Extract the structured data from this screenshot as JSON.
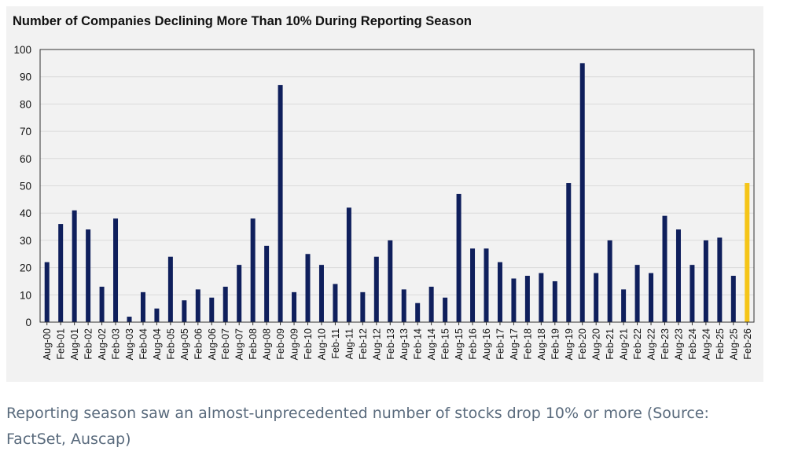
{
  "chart_data": {
    "type": "bar",
    "title": "Number of Companies Declining More Than 10% During Reporting Season",
    "xlabel": "",
    "ylabel": "",
    "ylim": [
      0,
      100
    ],
    "yticks": [
      0,
      10,
      20,
      30,
      40,
      50,
      60,
      70,
      80,
      90,
      100
    ],
    "grid": true,
    "categories": [
      "Aug-00",
      "Feb-01",
      "Aug-01",
      "Feb-02",
      "Aug-02",
      "Feb-03",
      "Aug-03",
      "Feb-04",
      "Aug-04",
      "Feb-05",
      "Aug-05",
      "Feb-06",
      "Aug-06",
      "Feb-07",
      "Aug-07",
      "Feb-08",
      "Aug-08",
      "Feb-09",
      "Aug-09",
      "Feb-10",
      "Aug-10",
      "Feb-11",
      "Aug-11",
      "Feb-12",
      "Aug-12",
      "Feb-13",
      "Aug-13",
      "Feb-14",
      "Aug-14",
      "Feb-15",
      "Aug-15",
      "Feb-16",
      "Aug-16",
      "Feb-17",
      "Aug-17",
      "Feb-18",
      "Aug-18",
      "Feb-19",
      "Aug-19",
      "Feb-20",
      "Aug-20",
      "Feb-21",
      "Aug-21",
      "Feb-22",
      "Aug-22",
      "Feb-23",
      "Aug-23",
      "Feb-24",
      "Aug-24",
      "Feb-25",
      "Aug-25",
      "Feb-26"
    ],
    "values": [
      22,
      36,
      41,
      34,
      13,
      38,
      2,
      11,
      5,
      24,
      8,
      12,
      9,
      13,
      21,
      38,
      28,
      87,
      11,
      25,
      21,
      14,
      42,
      11,
      24,
      30,
      12,
      7,
      13,
      9,
      47,
      27,
      27,
      22,
      16,
      17,
      18,
      15,
      51,
      95,
      18,
      30,
      12,
      21,
      18,
      39,
      34,
      21,
      30,
      31,
      17,
      51
    ],
    "bar_color": "#0f1f5c",
    "highlight_color": "#f5c518",
    "highlight_index": 51
  },
  "caption": "Reporting season saw an almost-unprecedented number of stocks drop 10% or more (Source: FactSet, Auscap)"
}
